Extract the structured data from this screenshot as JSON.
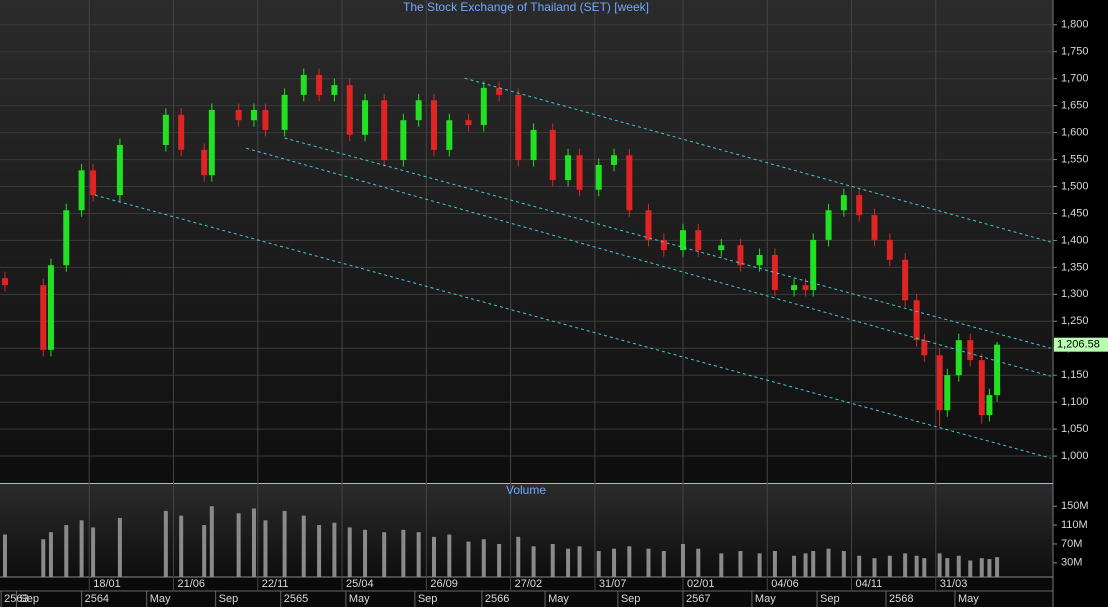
{
  "chart_data": [
    {
      "type": "candlestick",
      "title": "The Stock Exchange of Thailand (SET) [week]",
      "x": [
        0,
        10,
        12,
        16,
        20,
        23,
        30,
        42,
        46,
        52,
        54,
        61,
        65,
        68,
        73,
        78,
        82,
        86,
        90,
        94,
        99,
        104,
        108,
        112,
        116,
        121,
        125,
        129,
        134,
        138,
        143,
        147,
        150,
        155,
        159,
        163,
        168,
        172,
        177,
        181,
        187,
        192,
        197,
        201,
        206,
        209,
        211,
        215,
        219,
        223,
        227,
        231,
        235,
        238,
        240,
        244,
        246,
        249,
        252,
        255,
        257,
        259
      ],
      "open": [
        1330,
        1317,
        1197,
        1354,
        1456,
        1530,
        1484,
        1577,
        1633,
        1568,
        1521,
        1642,
        1623,
        1642,
        1605,
        1670,
        1707,
        1670,
        1688,
        1596,
        1660,
        1549,
        1623,
        1660,
        1568,
        1623,
        1614,
        1683,
        1670,
        1549,
        1605,
        1512,
        1558,
        1494,
        1540,
        1558,
        1456,
        1401,
        1382,
        1419,
        1382,
        1391,
        1354,
        1373,
        1308,
        1317,
        1308,
        1401,
        1456,
        1484,
        1447,
        1401,
        1364,
        1289,
        1215,
        1187,
        1085,
        1150,
        1215,
        1178,
        1076,
        1113
      ],
      "high": [
        1342,
        1329,
        1366,
        1468,
        1542,
        1542,
        1589,
        1645,
        1645,
        1580,
        1654,
        1654,
        1654,
        1654,
        1682,
        1719,
        1719,
        1700,
        1700,
        1672,
        1672,
        1635,
        1672,
        1672,
        1635,
        1635,
        1695,
        1695,
        1682,
        1617,
        1617,
        1570,
        1570,
        1552,
        1570,
        1570,
        1468,
        1413,
        1431,
        1431,
        1403,
        1403,
        1385,
        1385,
        1329,
        1329,
        1413,
        1468,
        1496,
        1496,
        1459,
        1413,
        1376,
        1301,
        1227,
        1199,
        1162,
        1227,
        1227,
        1190,
        1125,
        1212
      ],
      "low": [
        1305,
        1185,
        1185,
        1342,
        1444,
        1472,
        1472,
        1565,
        1556,
        1509,
        1509,
        1611,
        1611,
        1593,
        1593,
        1658,
        1658,
        1658,
        1584,
        1584,
        1537,
        1537,
        1611,
        1556,
        1556,
        1602,
        1602,
        1658,
        1537,
        1537,
        1500,
        1500,
        1482,
        1482,
        1528,
        1444,
        1389,
        1370,
        1370,
        1370,
        1370,
        1342,
        1342,
        1296,
        1296,
        1296,
        1296,
        1389,
        1444,
        1435,
        1389,
        1352,
        1277,
        1203,
        1175,
        1055,
        1073,
        1138,
        1166,
        1060,
        1064,
        1101
      ],
      "close": [
        1317,
        1197,
        1354,
        1456,
        1530,
        1484,
        1577,
        1633,
        1568,
        1521,
        1642,
        1623,
        1642,
        1605,
        1670,
        1707,
        1670,
        1688,
        1596,
        1660,
        1549,
        1623,
        1660,
        1568,
        1623,
        1614,
        1683,
        1670,
        1549,
        1605,
        1512,
        1558,
        1494,
        1540,
        1558,
        1456,
        1401,
        1382,
        1419,
        1382,
        1391,
        1354,
        1373,
        1308,
        1317,
        1308,
        1401,
        1456,
        1484,
        1447,
        1401,
        1364,
        1289,
        1215,
        1187,
        1085,
        1150,
        1215,
        1178,
        1076,
        1113,
        1206.58
      ],
      "up_color": "#22e022",
      "down_color": "#e02424",
      "last_price": {
        "value": 1206.58,
        "label": "1,206.58"
      },
      "xlim": [
        -1.3,
        273.6
      ],
      "ylim": [
        950,
        1846
      ],
      "yticks": [
        {
          "value": 1000,
          "label": "1,000"
        },
        {
          "value": 1050,
          "label": "1,050"
        },
        {
          "value": 1100,
          "label": "1,100"
        },
        {
          "value": 1150,
          "label": "1,150"
        },
        {
          "value": 1200,
          "label": "1,200"
        },
        {
          "value": 1250,
          "label": "1,250"
        },
        {
          "value": 1300,
          "label": "1,300"
        },
        {
          "value": 1350,
          "label": "1,350"
        },
        {
          "value": 1400,
          "label": "1,400"
        },
        {
          "value": 1450,
          "label": "1,450"
        },
        {
          "value": 1500,
          "label": "1,500"
        },
        {
          "value": 1550,
          "label": "1,550"
        },
        {
          "value": 1600,
          "label": "1,600"
        },
        {
          "value": 1650,
          "label": "1,650"
        },
        {
          "value": 1700,
          "label": "1,700"
        },
        {
          "value": 1750,
          "label": "1,750"
        },
        {
          "value": 1800,
          "label": "1,800"
        }
      ],
      "grid": true,
      "trendlines": [
        {
          "start": [
            120,
            1701
          ],
          "end": [
            273,
            1397
          ]
        },
        {
          "start": [
            63,
            1571
          ],
          "end": [
            273,
            1148
          ]
        },
        {
          "start": [
            73,
            1590
          ],
          "end": [
            273,
            1200
          ]
        },
        {
          "start": [
            23.5,
            1484
          ],
          "end": [
            273,
            996
          ]
        }
      ],
      "trendline_color": "#3fc8d8"
    },
    {
      "type": "bar",
      "title": "Volume",
      "x": [
        0,
        10,
        12,
        16,
        20,
        23,
        30,
        42,
        46,
        52,
        54,
        61,
        65,
        68,
        73,
        78,
        82,
        86,
        90,
        94,
        99,
        104,
        108,
        112,
        116,
        121,
        125,
        129,
        134,
        138,
        143,
        147,
        150,
        155,
        159,
        163,
        168,
        172,
        177,
        181,
        187,
        192,
        197,
        201,
        206,
        209,
        211,
        215,
        219,
        223,
        227,
        231,
        235,
        238,
        240,
        244,
        246,
        249,
        252,
        255,
        257,
        259
      ],
      "values": [
        90,
        80,
        95,
        110,
        120,
        105,
        125,
        140,
        130,
        110,
        150,
        135,
        145,
        120,
        140,
        130,
        110,
        115,
        105,
        100,
        95,
        100,
        95,
        85,
        90,
        75,
        80,
        70,
        85,
        65,
        70,
        60,
        65,
        55,
        60,
        65,
        60,
        55,
        70,
        60,
        50,
        55,
        50,
        55,
        45,
        50,
        55,
        60,
        55,
        45,
        40,
        45,
        50,
        45,
        40,
        50,
        40,
        45,
        35,
        40,
        38,
        42
      ],
      "color": "#8a8a8a",
      "xlim": [
        -1.3,
        273.6
      ],
      "ylim": [
        0,
        197
      ],
      "yticks": [
        {
          "value": 30,
          "label": "30M"
        },
        {
          "value": 70,
          "label": "70M"
        },
        {
          "value": 110,
          "label": "110M"
        },
        {
          "value": 150,
          "label": "150M"
        }
      ],
      "xticks": [
        {
          "value": 22,
          "label": "18/01"
        },
        {
          "value": 44,
          "label": "21/06"
        },
        {
          "value": 66,
          "label": "22/11"
        },
        {
          "value": 88,
          "label": "25/04"
        },
        {
          "value": 110,
          "label": "26/09"
        },
        {
          "value": 132,
          "label": "27/02"
        },
        {
          "value": 154,
          "label": "31/07"
        },
        {
          "value": 177,
          "label": "02/01"
        },
        {
          "value": 199,
          "label": "04/06"
        },
        {
          "value": 221,
          "label": "04/11"
        },
        {
          "value": 243,
          "label": "31/03"
        }
      ],
      "xticks_major": [
        {
          "value": -1,
          "label": "2563"
        },
        {
          "value": 3,
          "label": "Sep"
        },
        {
          "value": 20,
          "label": "2564"
        },
        {
          "value": 37,
          "label": "May"
        },
        {
          "value": 55,
          "label": "Sep"
        },
        {
          "value": 72,
          "label": "2565"
        },
        {
          "value": 89,
          "label": "May"
        },
        {
          "value": 107,
          "label": "Sep"
        },
        {
          "value": 124.5,
          "label": "2566"
        },
        {
          "value": 141,
          "label": "May"
        },
        {
          "value": 160,
          "label": "Sep"
        },
        {
          "value": 177,
          "label": "2567"
        },
        {
          "value": 195,
          "label": "May"
        },
        {
          "value": 212,
          "label": "Sep"
        },
        {
          "value": 230,
          "label": "2568"
        },
        {
          "value": 248,
          "label": "May"
        }
      ]
    }
  ]
}
